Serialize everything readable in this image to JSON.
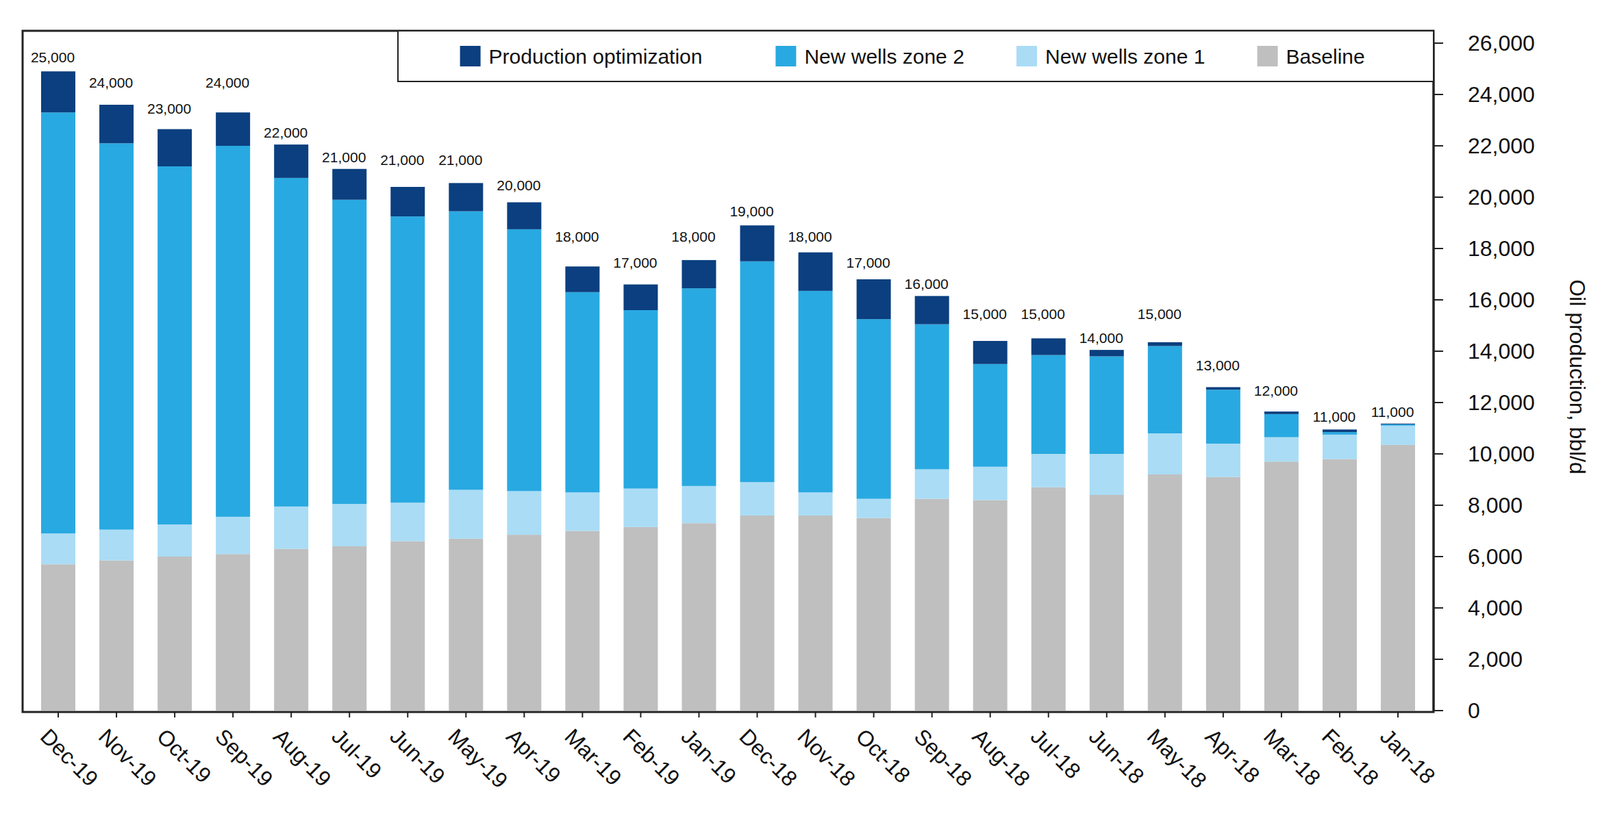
{
  "chart_data": {
    "type": "bar",
    "stacked": true,
    "y_label": "Oil production, bbl/d",
    "categories": [
      "Dec-19",
      "Nov-19",
      "Oct-19",
      "Sep-19",
      "Aug-19",
      "Jul-19",
      "Jun-19",
      "May-19",
      "Apr-19",
      "Mar-19",
      "Feb-19",
      "Jan-19",
      "Dec-18",
      "Nov-18",
      "Oct-18",
      "Sep-18",
      "Aug-18",
      "Jul-18",
      "Jun-18",
      "May-18",
      "Apr-18",
      "Mar-18",
      "Feb-18",
      "Jan-18"
    ],
    "series": [
      {
        "name": "Baseline",
        "color": "#bfbfbf",
        "values": [
          5700,
          5850,
          6000,
          6100,
          6300,
          6400,
          6600,
          6700,
          6850,
          7000,
          7150,
          7300,
          7600,
          7600,
          7500,
          8250,
          8200,
          8700,
          8400,
          9200,
          9100,
          9700,
          9800,
          10350
        ]
      },
      {
        "name": "New wells zone 1",
        "color": "#aadcf5",
        "values": [
          1200,
          1200,
          1250,
          1450,
          1650,
          1650,
          1500,
          1900,
          1700,
          1500,
          1500,
          1450,
          1300,
          900,
          750,
          1150,
          1300,
          1300,
          1600,
          1600,
          1300,
          950,
          950,
          750
        ]
      },
      {
        "name": "New wells zone 2",
        "color": "#29a9e1",
        "values": [
          16400,
          15050,
          13950,
          14450,
          12800,
          11850,
          11150,
          10850,
          10200,
          7800,
          6950,
          7700,
          8600,
          7850,
          7000,
          5650,
          4000,
          3850,
          3800,
          3400,
          2100,
          900,
          100,
          50
        ]
      },
      {
        "name": "Production optimization",
        "color": "#0b3f7f",
        "values": [
          1600,
          1500,
          1450,
          1300,
          1300,
          1200,
          1150,
          1100,
          1050,
          1000,
          1000,
          1100,
          1400,
          1500,
          1550,
          1100,
          900,
          650,
          250,
          150,
          100,
          100,
          100,
          30
        ]
      }
    ],
    "totals": [
      25000,
      24000,
      23000,
      24000,
      22000,
      21000,
      21000,
      21000,
      20000,
      18000,
      17000,
      18000,
      19000,
      18000,
      17000,
      16000,
      15000,
      15000,
      14000,
      15000,
      13000,
      12000,
      11000,
      11000
    ],
    "total_labels": [
      "25,000",
      "24,000",
      "23,000",
      "24,000",
      "22,000",
      "21,000",
      "21,000",
      "21,000",
      "20,000",
      "18,000",
      "17,000",
      "18,000",
      "19,000",
      "18,000",
      "17,000",
      "16,000",
      "15,000",
      "15,000",
      "14,000",
      "15,000",
      "13,000",
      "12,000",
      "11,000",
      "11,000"
    ],
    "ylim": [
      0,
      26000
    ],
    "yticks": [
      0,
      {
        "value": 2000,
        "label": "2,000"
      },
      {
        "value": 4000,
        "label": "4,000"
      },
      {
        "value": 6000,
        "label": "6,000"
      },
      {
        "value": 8000,
        "label": "8,000"
      },
      {
        "value": 10000,
        "label": "10,000"
      },
      {
        "value": 12000,
        "label": "12,000"
      },
      {
        "value": 14000,
        "label": "14,000"
      },
      {
        "value": 16000,
        "label": "16,000"
      },
      {
        "value": 18000,
        "label": "18,000"
      },
      {
        "value": 20000,
        "label": "20,000"
      },
      {
        "value": 22000,
        "label": "22,000"
      },
      {
        "value": 24000,
        "label": "24,000"
      },
      {
        "value": 26000,
        "label": "26,000"
      }
    ],
    "grid": false,
    "legend": "top-right"
  }
}
